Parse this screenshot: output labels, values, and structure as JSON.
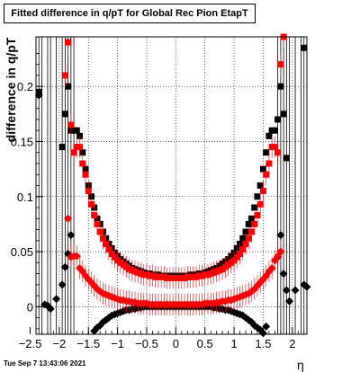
{
  "timestamp": "Tue Sep  7 13:43:06 2021",
  "chart_data": {
    "type": "scatter",
    "title": "Fitted difference in q/pT for Global Rec Pion EtapT",
    "xlabel": "η",
    "ylabel": "difference in q/pT",
    "xlim": [
      -2.4,
      2.25
    ],
    "ylim": [
      -0.025,
      0.245
    ],
    "xticks": [
      -2.5,
      -2,
      -1.5,
      -1,
      -0.5,
      0,
      0.5,
      1,
      1.5,
      2
    ],
    "xtick_labels": [
      "−2.5",
      "−2",
      "−1.5",
      "−1",
      "−0.5",
      "0",
      "0.5",
      "1",
      "1.5",
      "2"
    ],
    "yticks": [
      0,
      0.05,
      0.1,
      0.15,
      0.2
    ],
    "ytick_labels": [
      "0",
      "0.05",
      "0.1",
      "0.15",
      "0.2"
    ],
    "grid": true,
    "series": [
      {
        "color": "#000000",
        "marker": "square",
        "x": [
          -2.35,
          -1.95,
          -1.9,
          -1.85,
          -1.8,
          -1.75,
          -1.7,
          -1.65,
          -1.6,
          -1.55,
          -1.5,
          -1.45,
          -1.4,
          -1.35,
          -1.3,
          -1.25,
          -1.2,
          -1.15,
          -1.1,
          -1.05,
          -1.0,
          -0.95,
          -0.9,
          -0.85,
          -0.8,
          -0.75,
          -0.7,
          -0.65,
          -0.6,
          -0.55,
          -0.5,
          -0.45,
          -0.4,
          -0.35,
          -0.3,
          -0.25,
          -0.2,
          -0.15,
          -0.1,
          -0.05,
          0.0,
          0.05,
          0.1,
          0.15,
          0.2,
          0.25,
          0.3,
          0.35,
          0.4,
          0.45,
          0.5,
          0.55,
          0.6,
          0.65,
          0.7,
          0.75,
          0.8,
          0.85,
          0.9,
          0.95,
          1.0,
          1.05,
          1.1,
          1.15,
          1.2,
          1.25,
          1.3,
          1.35,
          1.4,
          1.45,
          1.5,
          1.55,
          1.6,
          1.65,
          1.7,
          1.75,
          1.8,
          1.85,
          1.9,
          2.2
        ],
        "y": [
          0.195,
          0.145,
          0.175,
          0.2,
          0.16,
          0.16,
          0.16,
          0.155,
          0.14,
          0.125,
          0.11,
          0.1,
          0.09,
          0.08,
          0.075,
          0.068,
          0.062,
          0.057,
          0.053,
          0.049,
          0.046,
          0.043,
          0.041,
          0.039,
          0.037,
          0.035,
          0.034,
          0.033,
          0.032,
          0.031,
          0.03,
          0.03,
          0.029,
          0.029,
          0.029,
          0.028,
          0.028,
          0.028,
          0.028,
          0.028,
          0.028,
          0.028,
          0.028,
          0.028,
          0.028,
          0.029,
          0.029,
          0.029,
          0.03,
          0.03,
          0.031,
          0.032,
          0.033,
          0.034,
          0.035,
          0.037,
          0.039,
          0.041,
          0.043,
          0.046,
          0.049,
          0.053,
          0.057,
          0.062,
          0.068,
          0.075,
          0.08,
          0.09,
          0.1,
          0.11,
          0.125,
          0.14,
          0.155,
          0.16,
          0.16,
          0.17,
          0.2,
          0.175,
          0.135,
          0.235
        ]
      },
      {
        "color": "#ff0000",
        "marker": "square",
        "x": [
          -1.9,
          -1.85,
          -1.8,
          -1.75,
          -1.7,
          -1.65,
          -1.6,
          -1.55,
          -1.5,
          -1.45,
          -1.4,
          -1.35,
          -1.3,
          -1.25,
          -1.2,
          -1.15,
          -1.1,
          -1.05,
          -1.0,
          -0.95,
          -0.9,
          -0.85,
          -0.8,
          -0.75,
          -0.7,
          -0.65,
          -0.6,
          -0.55,
          -0.5,
          -0.45,
          -0.4,
          -0.35,
          -0.3,
          -0.25,
          -0.2,
          -0.15,
          -0.1,
          -0.05,
          0.0,
          0.05,
          0.1,
          0.15,
          0.2,
          0.25,
          0.3,
          0.35,
          0.4,
          0.45,
          0.5,
          0.55,
          0.6,
          0.65,
          0.7,
          0.75,
          0.8,
          0.85,
          0.9,
          0.95,
          1.0,
          1.05,
          1.1,
          1.15,
          1.2,
          1.25,
          1.3,
          1.35,
          1.4,
          1.45,
          1.5,
          1.55,
          1.6,
          1.65,
          1.7,
          1.75,
          1.8,
          1.85
        ],
        "y": [
          0.21,
          0.24,
          0.165,
          0.14,
          0.145,
          0.145,
          0.13,
          0.12,
          0.105,
          0.093,
          0.083,
          0.075,
          0.068,
          0.062,
          0.057,
          0.052,
          0.048,
          0.045,
          0.042,
          0.04,
          0.038,
          0.036,
          0.034,
          0.033,
          0.032,
          0.031,
          0.03,
          0.029,
          0.029,
          0.028,
          0.028,
          0.027,
          0.027,
          0.027,
          0.027,
          0.026,
          0.026,
          0.026,
          0.026,
          0.026,
          0.026,
          0.026,
          0.027,
          0.027,
          0.027,
          0.027,
          0.028,
          0.028,
          0.029,
          0.029,
          0.03,
          0.031,
          0.032,
          0.033,
          0.034,
          0.036,
          0.038,
          0.04,
          0.042,
          0.045,
          0.048,
          0.052,
          0.057,
          0.062,
          0.068,
          0.075,
          0.083,
          0.093,
          0.105,
          0.12,
          0.13,
          0.145,
          0.145,
          0.14,
          0.22,
          0.245
        ]
      },
      {
        "color": "#000000",
        "marker": "diamond",
        "x": [
          -2.35,
          -2.25,
          -2.2,
          -2.15,
          -2.05,
          -1.95,
          -1.9,
          -1.85,
          -1.8,
          -1.4,
          -1.35,
          -1.3,
          -1.25,
          -1.2,
          -1.15,
          -1.1,
          -1.05,
          -1.0,
          -0.95,
          -0.9,
          -0.85,
          -0.8,
          -0.75,
          -0.7,
          -0.65,
          -0.6,
          -0.55,
          -0.5,
          -0.45,
          -0.4,
          -0.35,
          -0.3,
          -0.25,
          -0.2,
          -0.15,
          -0.1,
          -0.05,
          0.0,
          0.05,
          0.1,
          0.15,
          0.2,
          0.25,
          0.3,
          0.35,
          0.4,
          0.45,
          0.5,
          0.55,
          0.6,
          0.65,
          0.7,
          0.75,
          0.8,
          0.85,
          0.9,
          0.95,
          1.0,
          1.05,
          1.1,
          1.15,
          1.2,
          1.25,
          1.3,
          1.35,
          1.4,
          1.45,
          1.5,
          1.55,
          1.75,
          1.8,
          1.85,
          1.9,
          1.95,
          2.05,
          2.2,
          2.25
        ],
        "y": [
          0.192,
          0.002,
          0.001,
          -0.002,
          0.007,
          0.02,
          0.036,
          0.048,
          0.065,
          -0.022,
          -0.019,
          -0.017,
          -0.014,
          -0.012,
          -0.01,
          -0.008,
          -0.007,
          -0.006,
          -0.005,
          -0.004,
          -0.003,
          -0.003,
          -0.002,
          -0.002,
          -0.001,
          -0.001,
          0.0,
          0.0,
          0.0,
          0.0,
          0.0,
          0.0,
          0.0,
          0.0,
          0.0,
          0.0,
          0.0,
          0.0,
          0.0,
          0.0,
          0.0,
          0.0,
          0.0,
          0.0,
          0.0,
          0.0,
          0.0,
          0.0,
          0.0,
          0.0,
          -0.001,
          -0.001,
          -0.002,
          -0.002,
          -0.003,
          -0.003,
          -0.004,
          -0.005,
          -0.006,
          -0.007,
          -0.008,
          -0.01,
          -0.012,
          -0.014,
          -0.017,
          -0.019,
          -0.021,
          -0.024,
          -0.018,
          0.045,
          0.065,
          0.03,
          0.015,
          0.005,
          0.015,
          0.02,
          0.018
        ]
      },
      {
        "color": "#ff0000",
        "marker": "diamond",
        "x": [
          -1.85,
          -1.8,
          -1.75,
          -1.7,
          -1.65,
          -1.6,
          -1.55,
          -1.5,
          -1.45,
          -1.4,
          -1.35,
          -1.3,
          -1.25,
          -1.2,
          -1.15,
          -1.1,
          -1.05,
          -1.0,
          -0.95,
          -0.9,
          -0.85,
          -0.8,
          -0.75,
          -0.7,
          -0.65,
          -0.6,
          -0.55,
          -0.5,
          -0.45,
          -0.4,
          -0.35,
          -0.3,
          -0.25,
          -0.2,
          -0.15,
          -0.1,
          -0.05,
          0.0,
          0.05,
          0.1,
          0.15,
          0.2,
          0.25,
          0.3,
          0.35,
          0.4,
          0.45,
          0.5,
          0.55,
          0.6,
          0.65,
          0.7,
          0.75,
          0.8,
          0.85,
          0.9,
          0.95,
          1.0,
          1.05,
          1.1,
          1.15,
          1.2,
          1.25,
          1.3,
          1.35,
          1.4,
          1.45,
          1.5,
          1.55,
          1.6,
          1.65,
          1.7,
          1.75,
          1.8
        ],
        "y": [
          0.08,
          0.045,
          0.046,
          0.046,
          0.035,
          0.032,
          0.028,
          0.025,
          0.022,
          0.019,
          0.016,
          0.014,
          0.012,
          0.011,
          0.01,
          0.009,
          0.008,
          0.007,
          0.006,
          0.006,
          0.005,
          0.005,
          0.004,
          0.004,
          0.003,
          0.003,
          0.003,
          0.003,
          0.002,
          0.002,
          0.002,
          0.002,
          0.002,
          0.002,
          0.002,
          0.002,
          0.002,
          0.002,
          0.002,
          0.002,
          0.002,
          0.002,
          0.002,
          0.002,
          0.002,
          0.002,
          0.002,
          0.003,
          0.003,
          0.003,
          0.003,
          0.004,
          0.004,
          0.005,
          0.005,
          0.006,
          0.006,
          0.007,
          0.008,
          0.009,
          0.01,
          0.011,
          0.012,
          0.014,
          0.016,
          0.019,
          0.022,
          0.025,
          0.028,
          0.032,
          0.035,
          0.042,
          0.046,
          0.05
        ]
      }
    ],
    "vlines_x": [
      -2.4,
      -2.35,
      -2.3,
      -2.2,
      -2.15,
      -2.05,
      -1.95,
      -1.9,
      -1.85,
      -1.8,
      -1.75,
      1.75,
      1.8,
      1.85,
      1.9,
      1.95,
      2.05,
      2.15,
      2.2,
      2.25
    ]
  }
}
